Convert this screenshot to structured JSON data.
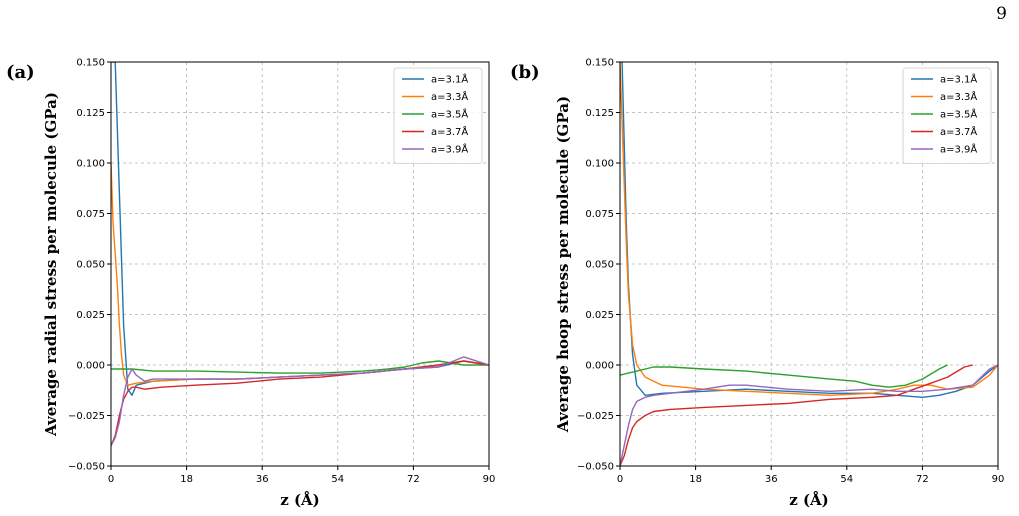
{
  "page": {
    "number": "9"
  },
  "chart_data": [
    {
      "panel_label": "(a)",
      "type": "line",
      "xlabel": "z (Å)",
      "ylabel": "Average radial stress per molecule (GPa)",
      "xlim": [
        0,
        90
      ],
      "ylim": [
        -0.05,
        0.15
      ],
      "xticks": [
        "0",
        "18",
        "36",
        "54",
        "72",
        "90"
      ],
      "yticks": [
        "−0.050",
        "−0.025",
        "0.000",
        "0.025",
        "0.050",
        "0.075",
        "0.100",
        "0.125",
        "0.150"
      ],
      "grid": true,
      "legend_position": "top-right",
      "series": [
        {
          "name": "a=3.1Å",
          "color": "#1f77b4",
          "x": [
            0,
            1,
            2,
            3,
            4,
            5,
            6,
            10,
            20,
            30,
            40,
            50,
            60,
            70,
            78,
            84,
            90
          ],
          "y": [
            0.15,
            0.15,
            0.085,
            0.02,
            -0.012,
            -0.015,
            -0.01,
            -0.008,
            -0.007,
            -0.007,
            -0.006,
            -0.005,
            -0.004,
            -0.002,
            -0.001,
            0.002,
            0.0
          ]
        },
        {
          "name": "a=3.3Å",
          "color": "#ff7f0e",
          "x": [
            0,
            0.5,
            1,
            1.5,
            2,
            2.5,
            3,
            4,
            6,
            10,
            20,
            30,
            40,
            50,
            60,
            70,
            78,
            84,
            90
          ],
          "y": [
            0.1,
            0.07,
            0.055,
            0.04,
            0.02,
            0.005,
            -0.005,
            -0.01,
            -0.009,
            -0.008,
            -0.007,
            -0.007,
            -0.006,
            -0.005,
            -0.004,
            -0.002,
            0.0,
            0.002,
            0.0
          ]
        },
        {
          "name": "a=3.5Å",
          "color": "#2ca02c",
          "x": [
            0,
            5,
            10,
            20,
            30,
            40,
            50,
            60,
            66,
            70,
            74,
            78,
            84,
            88,
            90
          ],
          "y": [
            -0.002,
            -0.002,
            -0.003,
            -0.003,
            -0.0035,
            -0.004,
            -0.004,
            -0.003,
            -0.002,
            -0.001,
            0.001,
            0.002,
            0.0,
            0.0,
            0.0
          ]
        },
        {
          "name": "a=3.7Å",
          "color": "#d62728",
          "x": [
            0,
            1,
            2,
            3,
            4,
            5,
            6,
            8,
            12,
            20,
            30,
            40,
            50,
            60,
            70,
            78,
            84,
            90
          ],
          "y": [
            -0.04,
            -0.035,
            -0.025,
            -0.017,
            -0.013,
            -0.011,
            -0.011,
            -0.012,
            -0.011,
            -0.01,
            -0.009,
            -0.007,
            -0.006,
            -0.004,
            -0.002,
            0.0,
            0.002,
            0.0
          ]
        },
        {
          "name": "a=3.9Å",
          "color": "#9467bd",
          "x": [
            0,
            1,
            2,
            3,
            4,
            5,
            6,
            8,
            10,
            20,
            30,
            40,
            50,
            60,
            70,
            78,
            84,
            90
          ],
          "y": [
            -0.04,
            -0.036,
            -0.028,
            -0.015,
            -0.006,
            -0.002,
            -0.005,
            -0.008,
            -0.007,
            -0.007,
            -0.007,
            -0.006,
            -0.005,
            -0.004,
            -0.002,
            -0.001,
            0.004,
            0.0
          ]
        }
      ]
    },
    {
      "panel_label": "(b)",
      "type": "line",
      "xlabel": "z (Å)",
      "ylabel": "Average hoop stress per molecule (GPa)",
      "xlim": [
        0,
        90
      ],
      "ylim": [
        -0.05,
        0.15
      ],
      "xticks": [
        "0",
        "18",
        "36",
        "54",
        "72",
        "90"
      ],
      "yticks": [
        "−0.050",
        "−0.025",
        "0.000",
        "0.025",
        "0.050",
        "0.075",
        "0.100",
        "0.125",
        "0.150"
      ],
      "grid": true,
      "legend_position": "top-right",
      "series": [
        {
          "name": "a=3.1Å",
          "color": "#1f77b4",
          "x": [
            0,
            0.5,
            1,
            1.5,
            2,
            3,
            4,
            6,
            10,
            20,
            30,
            40,
            50,
            60,
            66,
            72,
            76,
            80,
            84,
            88,
            90
          ],
          "y": [
            0.15,
            0.15,
            0.11,
            0.07,
            0.04,
            0.005,
            -0.01,
            -0.015,
            -0.014,
            -0.013,
            -0.012,
            -0.013,
            -0.014,
            -0.014,
            -0.015,
            -0.016,
            -0.015,
            -0.013,
            -0.01,
            -0.003,
            0.0
          ]
        },
        {
          "name": "a=3.3Å",
          "color": "#ff7f0e",
          "x": [
            0,
            0.5,
            1,
            1.5,
            2,
            3,
            4,
            6,
            10,
            20,
            30,
            40,
            50,
            60,
            66,
            70,
            74,
            78,
            84,
            88,
            90
          ],
          "y": [
            0.15,
            0.12,
            0.09,
            0.06,
            0.035,
            0.01,
            0.0,
            -0.006,
            -0.01,
            -0.012,
            -0.013,
            -0.014,
            -0.015,
            -0.014,
            -0.012,
            -0.01,
            -0.01,
            -0.012,
            -0.011,
            -0.005,
            0.0
          ]
        },
        {
          "name": "a=3.5Å",
          "color": "#2ca02c",
          "x": [
            0,
            2,
            4,
            6,
            8,
            12,
            20,
            30,
            40,
            50,
            56,
            60,
            64,
            68,
            72,
            76,
            78
          ],
          "y": [
            -0.005,
            -0.004,
            -0.003,
            -0.002,
            -0.001,
            -0.001,
            -0.002,
            -0.003,
            -0.005,
            -0.007,
            -0.008,
            -0.01,
            -0.011,
            -0.01,
            -0.007,
            -0.002,
            0.0
          ]
        },
        {
          "name": "a=3.7Å",
          "color": "#d62728",
          "x": [
            0,
            1,
            2,
            3,
            4,
            6,
            8,
            12,
            20,
            30,
            40,
            50,
            60,
            66,
            70,
            74,
            78,
            82,
            84
          ],
          "y": [
            -0.05,
            -0.045,
            -0.037,
            -0.031,
            -0.028,
            -0.025,
            -0.023,
            -0.022,
            -0.021,
            -0.02,
            -0.019,
            -0.017,
            -0.016,
            -0.015,
            -0.012,
            -0.009,
            -0.006,
            -0.001,
            0.0
          ]
        },
        {
          "name": "a=3.9Å",
          "color": "#9467bd",
          "x": [
            0,
            1,
            2,
            3,
            4,
            6,
            8,
            12,
            20,
            26,
            30,
            40,
            50,
            60,
            66,
            72,
            78,
            84,
            88,
            90
          ],
          "y": [
            -0.05,
            -0.04,
            -0.03,
            -0.022,
            -0.018,
            -0.016,
            -0.015,
            -0.014,
            -0.012,
            -0.01,
            -0.01,
            -0.012,
            -0.013,
            -0.012,
            -0.013,
            -0.013,
            -0.012,
            -0.01,
            -0.002,
            0.0
          ]
        }
      ]
    }
  ]
}
